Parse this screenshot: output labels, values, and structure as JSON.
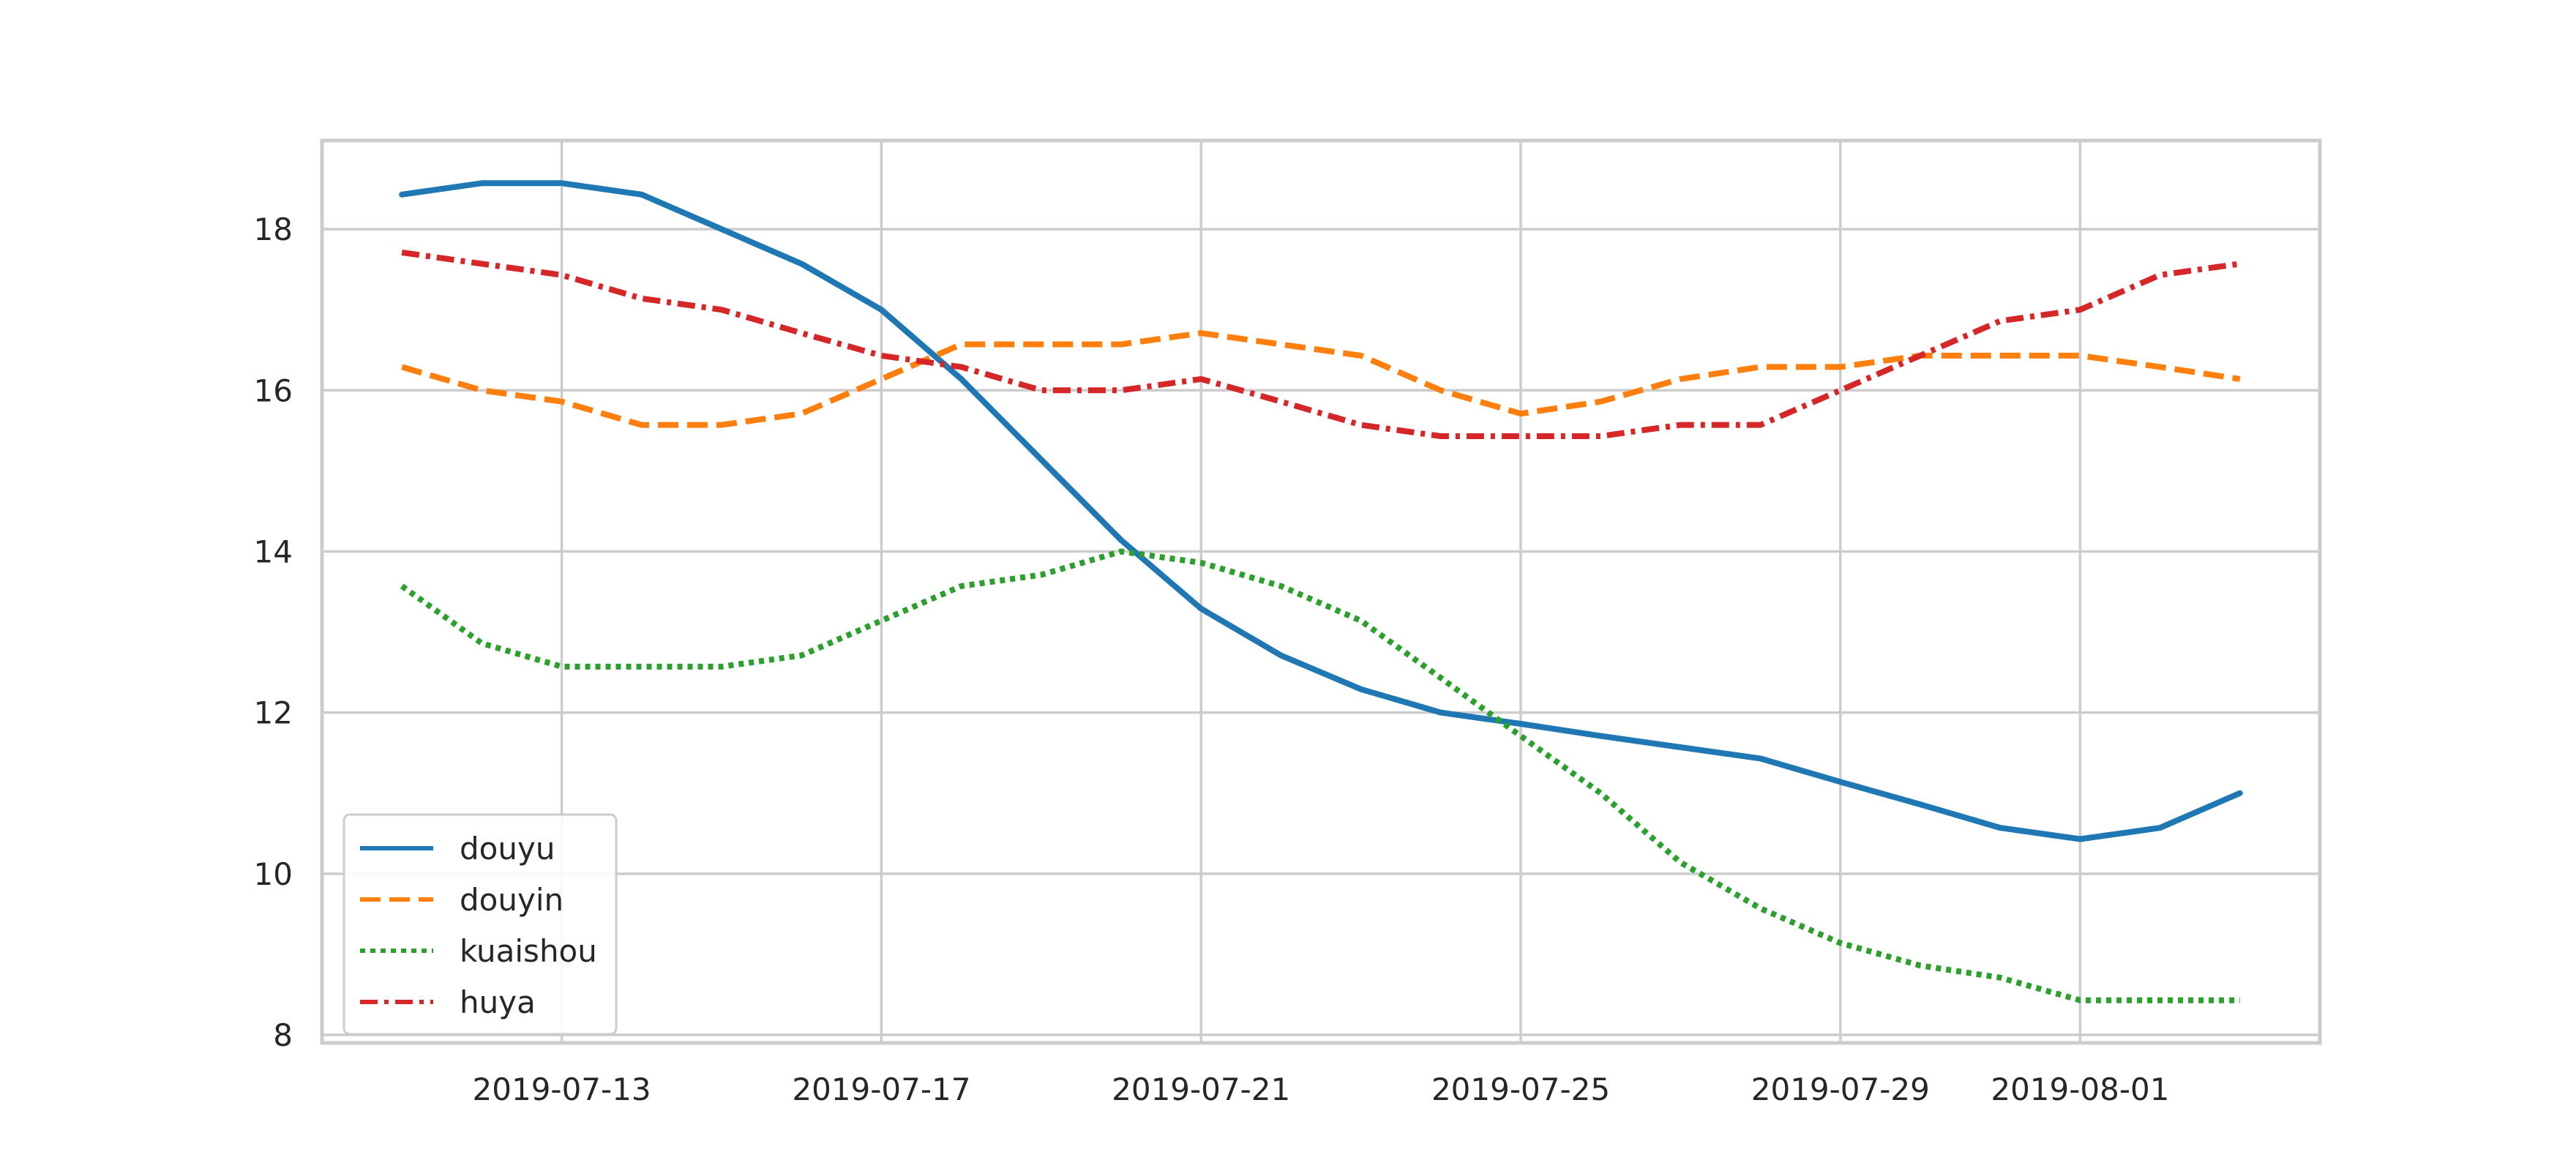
{
  "chart_data": {
    "type": "line",
    "title": "",
    "xlabel": "",
    "ylabel": "",
    "x": [
      "2019-07-11",
      "2019-07-12",
      "2019-07-13",
      "2019-07-14",
      "2019-07-15",
      "2019-07-16",
      "2019-07-17",
      "2019-07-18",
      "2019-07-19",
      "2019-07-20",
      "2019-07-21",
      "2019-07-22",
      "2019-07-23",
      "2019-07-24",
      "2019-07-25",
      "2019-07-26",
      "2019-07-27",
      "2019-07-28",
      "2019-07-29",
      "2019-07-30",
      "2019-07-31",
      "2019-08-01",
      "2019-08-02",
      "2019-08-03"
    ],
    "xlim": [
      "2019-07-10",
      "2019-08-04"
    ],
    "ylim": [
      7.9,
      19.1
    ],
    "x_ticks": [
      "2019-07-13",
      "2019-07-17",
      "2019-07-21",
      "2019-07-25",
      "2019-07-29",
      "2019-08-01"
    ],
    "y_ticks": [
      8,
      10,
      12,
      14,
      16,
      18
    ],
    "grid": true,
    "legend_position": "lower-left",
    "series": [
      {
        "name": "douyu",
        "color": "#1f77b4",
        "style": "solid",
        "values": [
          18.43,
          18.57,
          18.57,
          18.43,
          18.0,
          17.57,
          17.0,
          16.14,
          15.14,
          14.14,
          13.29,
          12.71,
          12.29,
          12.0,
          11.86,
          11.71,
          11.57,
          11.43,
          11.14,
          10.86,
          10.57,
          10.43,
          10.57,
          11.0
        ]
      },
      {
        "name": "douyin",
        "color": "#ff7f0e",
        "style": "dashed",
        "values": [
          16.29,
          16.0,
          15.86,
          15.57,
          15.57,
          15.71,
          16.14,
          16.57,
          16.57,
          16.57,
          16.71,
          16.57,
          16.43,
          16.0,
          15.71,
          15.86,
          16.14,
          16.29,
          16.29,
          16.43,
          16.43,
          16.43,
          16.29,
          16.14
        ]
      },
      {
        "name": "kuaishou",
        "color": "#2ca02c",
        "style": "dotted",
        "values": [
          13.57,
          12.86,
          12.57,
          12.57,
          12.57,
          12.71,
          13.14,
          13.57,
          13.71,
          14.0,
          13.86,
          13.57,
          13.14,
          12.43,
          11.71,
          11.0,
          10.14,
          9.57,
          9.14,
          8.86,
          8.71,
          8.43,
          8.43,
          8.43
        ]
      },
      {
        "name": "huya",
        "color": "#d62728",
        "style": "dashdot",
        "values": [
          17.71,
          17.57,
          17.43,
          17.14,
          17.0,
          16.71,
          16.43,
          16.29,
          16.0,
          16.0,
          16.14,
          15.86,
          15.57,
          15.43,
          15.43,
          15.43,
          15.57,
          15.57,
          16.0,
          16.43,
          16.86,
          17.0,
          17.43,
          17.57
        ]
      }
    ]
  }
}
